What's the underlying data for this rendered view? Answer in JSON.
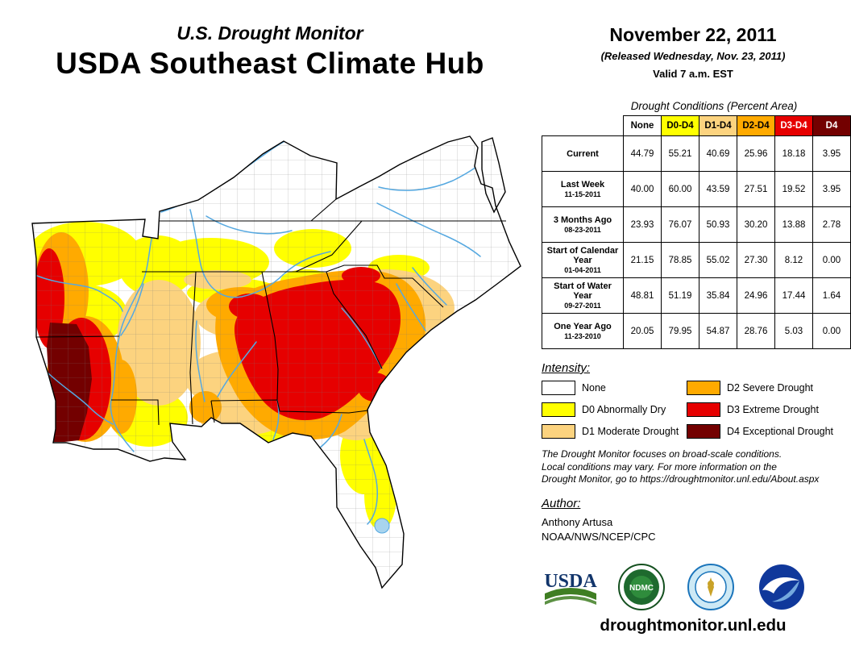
{
  "header": {
    "supertitle": "U.S. Drought Monitor",
    "title": "USDA Southeast Climate Hub"
  },
  "date_block": {
    "date": "November 22, 2011",
    "released": "(Released Wednesday, Nov. 23, 2011)",
    "valid": "Valid 7 a.m. EST"
  },
  "table": {
    "caption": "Drought Conditions (Percent Area)",
    "columns": [
      {
        "label": "None",
        "bg": "#FFFFFF",
        "fg": "#000000"
      },
      {
        "label": "D0-D4",
        "bg": "#FFFF00",
        "fg": "#000000"
      },
      {
        "label": "D1-D4",
        "bg": "#FCD37F",
        "fg": "#000000"
      },
      {
        "label": "D2-D4",
        "bg": "#FFAA00",
        "fg": "#000000"
      },
      {
        "label": "D3-D4",
        "bg": "#E60000",
        "fg": "#FFFFFF"
      },
      {
        "label": "D4",
        "bg": "#730000",
        "fg": "#FFFFFF"
      }
    ],
    "rows": [
      {
        "label": "Current",
        "sublabel": "",
        "values": [
          "44.79",
          "55.21",
          "40.69",
          "25.96",
          "18.18",
          "3.95"
        ]
      },
      {
        "label": "Last Week",
        "sublabel": "11-15-2011",
        "values": [
          "40.00",
          "60.00",
          "43.59",
          "27.51",
          "19.52",
          "3.95"
        ]
      },
      {
        "label": "3 Months Ago",
        "sublabel": "08-23-2011",
        "values": [
          "23.93",
          "76.07",
          "50.93",
          "30.20",
          "13.88",
          "2.78"
        ]
      },
      {
        "label": "Start of Calendar Year",
        "sublabel": "01-04-2011",
        "values": [
          "21.15",
          "78.85",
          "55.02",
          "27.30",
          "8.12",
          "0.00"
        ]
      },
      {
        "label": "Start of Water Year",
        "sublabel": "09-27-2011",
        "values": [
          "48.81",
          "51.19",
          "35.84",
          "24.96",
          "17.44",
          "1.64"
        ]
      },
      {
        "label": "One Year Ago",
        "sublabel": "11-23-2010",
        "values": [
          "20.05",
          "79.95",
          "54.87",
          "28.76",
          "5.03",
          "0.00"
        ]
      }
    ]
  },
  "legend": {
    "heading": "Intensity:",
    "items": [
      {
        "label": "None",
        "color": "#FFFFFF"
      },
      {
        "label": "D0 Abnormally Dry",
        "color": "#FFFF00"
      },
      {
        "label": "D1 Moderate Drought",
        "color": "#FCD37F"
      },
      {
        "label": "D2 Severe Drought",
        "color": "#FFAA00"
      },
      {
        "label": "D3 Extreme Drought",
        "color": "#E60000"
      },
      {
        "label": "D4 Exceptional Drought",
        "color": "#730000"
      }
    ]
  },
  "disclaimer": {
    "line1": "The Drought Monitor focuses on broad-scale conditions.",
    "line2": "Local conditions may vary. For more information on the",
    "line3": "Drought Monitor, go to https://droughtmonitor.unl.edu/About.aspx"
  },
  "author": {
    "heading": "Author:",
    "name": "Anthony Artusa",
    "org": "NOAA/NWS/NCEP/CPC"
  },
  "logos": {
    "usda_text": "USDA",
    "ndmc_text": "NDMC"
  },
  "footer": {
    "url": "droughtmonitor.unl.edu"
  },
  "map": {
    "region": "Southeast United States",
    "categories": [
      "None",
      "D0",
      "D1",
      "D2",
      "D3",
      "D4"
    ],
    "colors": {
      "none": "#FFFFFF",
      "d0": "#FFFF00",
      "d1": "#FCD37F",
      "d2": "#FFAA00",
      "d3": "#E60000",
      "d4": "#730000"
    },
    "water_color": "#55A8E0"
  }
}
